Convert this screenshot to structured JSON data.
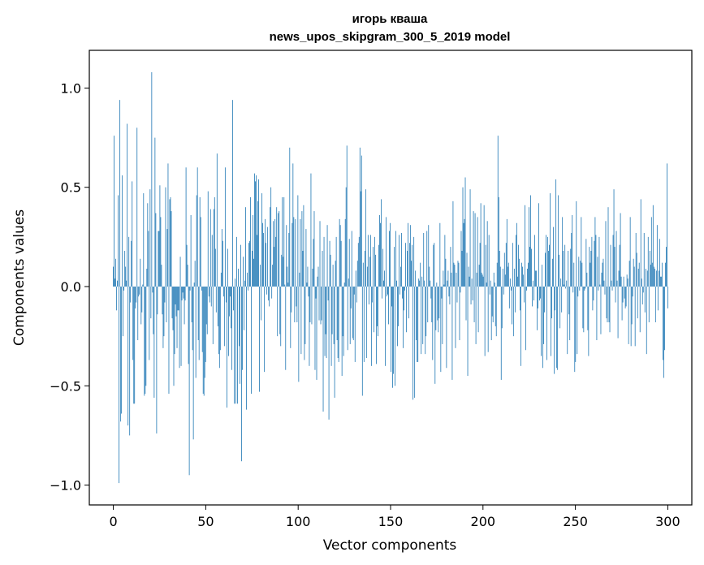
{
  "chart_data": {
    "type": "bar",
    "title": "игорь кваша",
    "subtitle": "news_upos_skipgram_300_5_2019 model",
    "xlabel": "Vector components",
    "ylabel": "Components values",
    "xlim": [
      -13,
      313
    ],
    "ylim": [
      -1.1,
      1.19
    ],
    "xticks": [
      0,
      50,
      100,
      150,
      200,
      250,
      300
    ],
    "xtick_labels": [
      "0",
      "50",
      "100",
      "150",
      "200",
      "250",
      "300"
    ],
    "yticks": [
      -1.0,
      -0.5,
      0.0,
      0.5,
      1.0
    ],
    "ytick_labels": [
      "−1.0",
      "−0.5",
      "0.0",
      "0.5",
      "1.0"
    ],
    "grid": false,
    "bar_color": "#1f77b4",
    "values": [
      0.1,
      0.76,
      0.04,
      0.14,
      -0.12,
      0.03,
      0.46,
      -0.99,
      0.94,
      -0.68,
      -0.64,
      0.56,
      -0.25,
      -0.02,
      0.18,
      0.1,
      0.03,
      0.82,
      -0.7,
      0.25,
      -0.75,
      -0.08,
      0.23,
      0.53,
      -0.37,
      -0.59,
      -0.59,
      -0.11,
      -0.08,
      0.8,
      -0.27,
      -0.05,
      -0.04,
      0.14,
      -0.19,
      -0.13,
      0.01,
      0.47,
      -0.55,
      -0.54,
      -0.5,
      0.09,
      0.42,
      0.28,
      -0.37,
      0.49,
      -0.16,
      1.08,
      -0.03,
      -0.24,
      -0.56,
      0.75,
      0.37,
      -0.74,
      -0.14,
      0.28,
      0.28,
      0.51,
      0.35,
      0.11,
      -0.14,
      -0.31,
      -0.25,
      -0.08,
      0.5,
      -0.18,
      0.29,
      0.62,
      -0.54,
      0.44,
      0.45,
      0.38,
      -0.16,
      -0.22,
      -0.5,
      -0.34,
      -0.09,
      -0.15,
      -0.31,
      -0.12,
      -0.12,
      -0.41,
      0.15,
      -0.4,
      -0.07,
      -0.03,
      -0.06,
      -0.19,
      -0.07,
      0.6,
      0.21,
      0.11,
      -0.39,
      -0.95,
      -0.02,
      0.36,
      -0.18,
      -0.32,
      -0.77,
      0.02,
      0.13,
      -0.46,
      0.46,
      0.6,
      -0.27,
      -0.37,
      0.45,
      0.35,
      -0.02,
      -0.33,
      -0.54,
      -0.55,
      -0.46,
      -0.38,
      -0.19,
      -0.24,
      0.48,
      -0.05,
      -0.08,
      0.39,
      -0.1,
      0.26,
      -0.29,
      0.39,
      0.45,
      0.19,
      -0.13,
      0.67,
      -0.2,
      -0.34,
      -0.41,
      -0.32,
      0.07,
      0.29,
      0.23,
      -0.05,
      -0.3,
      0.6,
      -0.08,
      -0.61,
      0.19,
      -0.35,
      -0.15,
      -0.05,
      -0.21,
      -0.42,
      0.94,
      -0.12,
      -0.59,
      0.04,
      -0.59,
      0.25,
      -0.59,
      0.09,
      -0.3,
      -0.49,
      0.21,
      -0.88,
      -0.42,
      0.15,
      -0.22,
      0.03,
      0.4,
      -0.62,
      0.07,
      -0.02,
      0.22,
      0.23,
      0.45,
      -0.54,
      0.18,
      0.36,
      0.14,
      0.57,
      0.53,
      0.56,
      0.26,
      0.43,
      0.54,
      -0.53,
      0.11,
      -0.17,
      0.47,
      0.32,
      0.27,
      -0.43,
      0.34,
      0.22,
      -0.04,
      0.3,
      -0.07,
      -0.1,
      0.4,
      0.5,
      -0.06,
      0.11,
      0.33,
      0.2,
      0.34,
      0.25,
      0.4,
      -0.25,
      0.37,
      0.38,
      -0.24,
      -0.3,
      0.16,
      0.45,
      0.15,
      0.45,
      0.01,
      -0.42,
      0.31,
      0.1,
      0.02,
      0.27,
      0.7,
      -0.31,
      -0.13,
      0.32,
      0.62,
      0.35,
      -0.18,
      0.34,
      -0.1,
      -0.18,
      0.46,
      -0.48,
      0.07,
      0.34,
      -0.34,
      0.38,
      0.18,
      0.41,
      -0.37,
      -0.29,
      0.29,
      0.02,
      0.1,
      -0.05,
      -0.4,
      -0.18,
      0.57,
      -0.19,
      0.09,
      0.24,
      0.38,
      -0.42,
      -0.06,
      -0.47,
      0.05,
      0.1,
      -0.17,
      0.33,
      -0.19,
      -0.17,
      0.18,
      -0.63,
      0.25,
      -0.35,
      -0.24,
      -0.36,
      0.31,
      -0.07,
      -0.67,
      0.23,
      0.16,
      -0.4,
      -0.24,
      0.11,
      -0.29,
      -0.56,
      0.13,
      0.25,
      -0.27,
      -0.36,
      -0.38,
      0.34,
      0.31,
      0.23,
      -0.45,
      -0.25,
      -0.35,
      0.02,
      0.34,
      0.5,
      0.71,
      -0.32,
      0.04,
      0.24,
      -0.29,
      -0.11,
      0.28,
      -0.26,
      -0.27,
      -0.04,
      -0.38,
      0.08,
      -0.08,
      0.13,
      0.22,
      0.25,
      0.7,
      0.48,
      0.66,
      -0.55,
      0.12,
      -0.38,
      0.18,
      0.49,
      -0.36,
      0.1,
      0.26,
      -0.09,
      0.15,
      0.26,
      -0.4,
      -0.08,
      0.2,
      -0.23,
      0.25,
      0.16,
      -0.39,
      -0.2,
      -0.25,
      0.21,
      0.36,
      0.32,
      0.44,
      -0.06,
      0.19,
      0.03,
      0.08,
      -0.4,
      0.35,
      -0.05,
      -0.04,
      -0.19,
      0.28,
      0.32,
      -0.43,
      -0.1,
      -0.51,
      -0.44,
      0.2,
      -0.5,
      0.28,
      0.03,
      -0.3,
      -0.2,
      0.26,
      -0.04,
      0.1,
      0.27,
      -0.06,
      -0.31,
      -0.12,
      -0.02,
      0.22,
      -0.23,
      0.18,
      0.32,
      -0.16,
      0.22,
      0.31,
      0.13,
      0.21,
      -0.57,
      0.25,
      -0.56,
      0.08,
      -0.27,
      -0.38,
      -0.38,
      0.04,
      0.03,
      0.12,
      -0.34,
      0.05,
      -0.29,
      0.27,
      0.03,
      -0.34,
      -0.25,
      0.28,
      -0.18,
      0.31,
      0.1,
      0.03,
      -0.06,
      -0.18,
      -0.37,
      0.21,
      0.22,
      -0.49,
      -0.22,
      0.02,
      -0.17,
      -0.23,
      -0.16,
      0.32,
      -0.43,
      -0.06,
      -0.29,
      0.08,
      0.01,
      0.26,
      0.14,
      -0.41,
      0.03,
      0.08,
      -0.05,
      -0.09,
      0.2,
      0.07,
      -0.47,
      0.43,
      0.12,
      0.11,
      -0.31,
      0.07,
      -0.08,
      0.13,
      0.12,
      -0.27,
      -0.03,
      0.28,
      0.18,
      0.5,
      0.32,
      0.34,
      0.55,
      -0.17,
      0.17,
      -0.45,
      0.1,
      0.05,
      0.49,
      -0.09,
      0.04,
      -0.07,
      0.38,
      -0.18,
      0.37,
      -0.29,
      0.07,
      0.35,
      -0.23,
      0.11,
      0.22,
      0.42,
      0.07,
      0.06,
      0.05,
      0.41,
      -0.35,
      0.21,
      0.02,
      0.33,
      -0.33,
      0.26,
      -0.04,
      0.03,
      -0.27,
      -0.15,
      -0.18,
      0.07,
      0.02,
      -0.2,
      -0.25,
      0.12,
      0.76,
      0.45,
      0.18,
      0.1,
      -0.47,
      -0.21,
      0.09,
      -0.04,
      0.17,
      0.06,
      0.22,
      0.34,
      0.1,
      0.12,
      -0.11,
      0.04,
      -0.02,
      -0.19,
      0.22,
      -0.25,
      0.09,
      -0.13,
      0.26,
      0.32,
      0.05,
      0.21,
      0.14,
      -0.12,
      -0.4,
      0.12,
      0.1,
      0.06,
      -0.08,
      0.41,
      -0.32,
      -0.02,
      0.09,
      0.12,
      0.4,
      0.2,
      0.46,
      0.19,
      -0.1,
      0.03,
      -0.07,
      0.26,
      0.08,
      0.08,
      -0.22,
      -0.11,
      0.42,
      -0.07,
      -0.06,
      -0.35,
      0.11,
      -0.41,
      -0.29,
      -0.13,
      0.17,
      0.26,
      -0.37,
      0.25,
      0.18,
      0.21,
      0.47,
      -0.35,
      -0.16,
      0.14,
      0.3,
      -0.44,
      -0.12,
      0.54,
      -0.41,
      -0.42,
      0.46,
      0.16,
      -0.21,
      0.04,
      -0.13,
      0.35,
      0.18,
      0.01,
      0.21,
      -0.01,
      0.03,
      -0.34,
      0.18,
      -0.14,
      -0.27,
      0.19,
      0.27,
      0.36,
      -0.03,
      0.12,
      -0.43,
      -0.38,
      0.43,
      -0.34,
      -0.05,
      0.15,
      -0.02,
      0.13,
      0.35,
      0.12,
      -0.21,
      -0.23,
      -0.02,
      -0.01,
      0.24,
      0.07,
      -0.22,
      -0.35,
      0.2,
      0.12,
      0.18,
      0.25,
      -0.12,
      -0.07,
      0.23,
      0.35,
      0.26,
      -0.27,
      0.15,
      -0.02,
      0.25,
      0.01,
      -0.24,
      0.07,
      0.12,
      0.14,
      0.03,
      -0.04,
      0.33,
      -0.16,
      -0.18,
      0.4,
      -0.18,
      -0.23,
      0.21,
      0.03,
      -0.02,
      0.26,
      0.49,
      0.2,
      -0.08,
      0.28,
      0.03,
      -0.26,
      0.08,
      0.21,
      0.37,
      0.05,
      -0.17,
      -0.08,
      0.05,
      -0.06,
      -0.11,
      -0.1,
      0.06,
      0.04,
      -0.29,
      0.13,
      0.35,
      -0.3,
      -0.19,
      -0.05,
      0.14,
      0.1,
      -0.3,
      0.27,
      0.17,
      -0.16,
      0.09,
      0.12,
      -0.23,
      0.44,
      0.04,
      -0.09,
      -0.03,
      0.27,
      -0.13,
      0.09,
      -0.34,
      0.08,
      0.25,
      -0.18,
      0.18,
      0.11,
      0.35,
      0.12,
      0.41,
      0.1,
      0.09,
      -0.18,
      0.08,
      0.31,
      -0.12,
      0.08,
      0.24,
      0.05,
      0.05,
      0.12,
      -0.37,
      -0.46,
      -0.32,
      0.12,
      0.2,
      0.62,
      -0.11
    ]
  }
}
